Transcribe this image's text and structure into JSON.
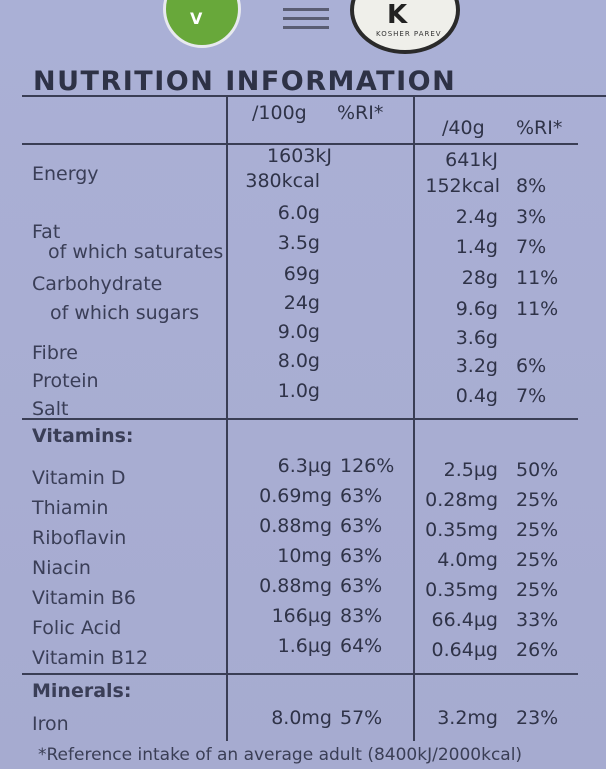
{
  "title": "NUTRITION INFORMATION",
  "headers": {
    "per100": "/100g",
    "ri100": "%RI*",
    "per40": "/40g",
    "ri40": "%RI*"
  },
  "rows": [
    {
      "label": "Energy",
      "v100": "1603kJ",
      "v100b": "380kcal",
      "r100": "",
      "v40": "641kJ",
      "v40b": "152kcal",
      "r40": "8%"
    },
    {
      "label": "Fat",
      "v100": "6.0g",
      "r100": "",
      "v40": "2.4g",
      "r40": "3%"
    },
    {
      "label": "of which saturates",
      "v100": "3.5g",
      "r100": "",
      "v40": "1.4g",
      "r40": "7%"
    },
    {
      "label": "Carbohydrate",
      "v100": "69g",
      "r100": "",
      "v40": "28g",
      "r40": "11%"
    },
    {
      "label": "of which sugars",
      "v100": "24g",
      "r100": "",
      "v40": "9.6g",
      "r40": "11%"
    },
    {
      "label": "Fibre",
      "v100": "9.0g",
      "r100": "",
      "v40": "3.6g",
      "r40": ""
    },
    {
      "label": "Protein",
      "v100": "8.0g",
      "r100": "",
      "v40": "3.2g",
      "r40": "6%"
    },
    {
      "label": "Salt",
      "v100": "1.0g",
      "r100": "",
      "v40": "0.4g",
      "r40": "7%"
    }
  ],
  "vitamins_title": "Vitamins:",
  "vitamins": [
    {
      "label": "Vitamin D",
      "v100": "6.3µg",
      "r100": "126%",
      "v40": "2.5µg",
      "r40": "50%"
    },
    {
      "label": "Thiamin",
      "v100": "0.69mg",
      "r100": "63%",
      "v40": "0.28mg",
      "r40": "25%"
    },
    {
      "label": "Riboflavin",
      "v100": "0.88mg",
      "r100": "63%",
      "v40": "0.35mg",
      "r40": "25%"
    },
    {
      "label": "Niacin",
      "v100": "10mg",
      "r100": "63%",
      "v40": "4.0mg",
      "r40": "25%"
    },
    {
      "label": "Vitamin B6",
      "v100": "0.88mg",
      "r100": "63%",
      "v40": "0.35mg",
      "r40": "25%"
    },
    {
      "label": "Folic Acid",
      "v100": "166µg",
      "r100": "83%",
      "v40": "66.4µg",
      "r40": "33%"
    },
    {
      "label": "Vitamin B12",
      "v100": "1.6µg",
      "r100": "64%",
      "v40": "0.64µg",
      "r40": "26%"
    }
  ],
  "minerals_title": "Minerals:",
  "minerals": [
    {
      "label": "Iron",
      "v100": "8.0mg",
      "r100": "57%",
      "v40": "3.2mg",
      "r40": "23%"
    }
  ],
  "footnote": "*Reference intake of an average adult (8400kJ/2000kcal)",
  "logos": {
    "kosher_letter": "K",
    "kosher_text": "KOSHER PAREV",
    "veg_letter": "V"
  }
}
